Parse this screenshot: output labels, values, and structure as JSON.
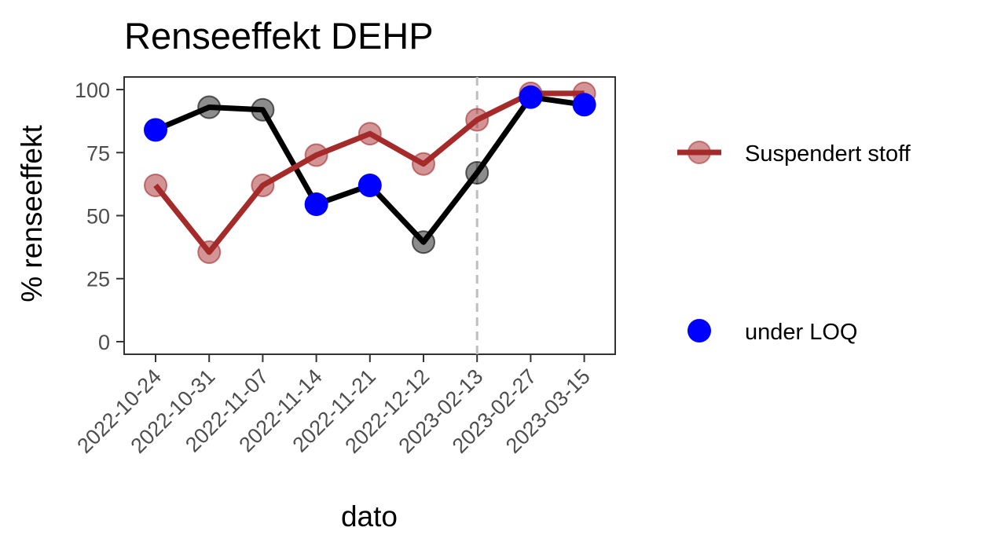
{
  "chart_data": {
    "type": "line",
    "title": "Renseeffekt DEHP",
    "xlabel": "dato",
    "ylabel": "% renseeffekt",
    "categories": [
      "2022-10-24",
      "2022-10-31",
      "2022-11-07",
      "2022-11-14",
      "2022-11-21",
      "2022-12-12",
      "2023-02-13",
      "2023-02-27",
      "2023-03-15"
    ],
    "ylim": [
      -5,
      105
    ],
    "yticks": [
      "0",
      "25",
      "50",
      "75",
      "100"
    ],
    "grid": false,
    "vline_at": "2023-02-13",
    "series": [
      {
        "name": "",
        "color": "#000000",
        "values": [
          84,
          93,
          92,
          54.5,
          62,
          39.5,
          67,
          97,
          94
        ],
        "under_loq": [
          true,
          false,
          false,
          true,
          true,
          false,
          false,
          true,
          true
        ]
      },
      {
        "name": "Suspendert stoff",
        "color": "#a52a2a",
        "values": [
          62,
          35.5,
          62,
          74,
          82.5,
          70.5,
          88,
          98.5,
          98.5
        ],
        "under_loq": [
          false,
          false,
          false,
          false,
          false,
          false,
          false,
          false,
          false
        ]
      }
    ],
    "legend": {
      "position": "right",
      "items": [
        {
          "label": "Suspendert stoff",
          "kind": "line-point",
          "color": "#a52a2a"
        },
        {
          "label": "under LOQ",
          "kind": "point",
          "color": "#0000ff"
        }
      ]
    },
    "loq_color": "#0000ff"
  }
}
